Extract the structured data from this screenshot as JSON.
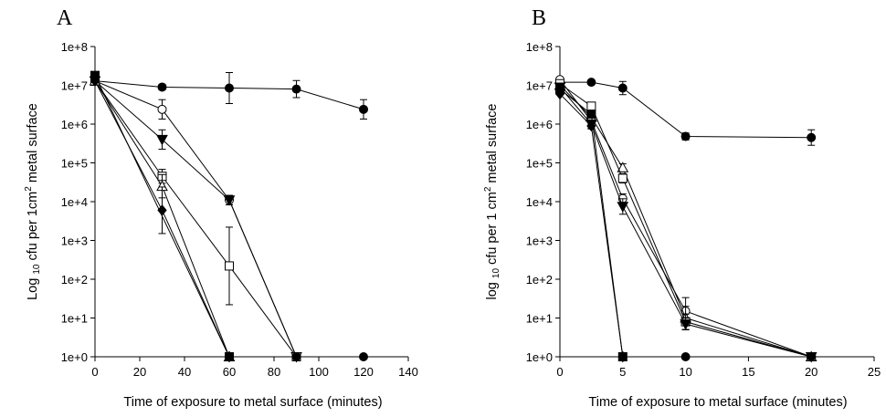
{
  "chart_data": [
    {
      "type": "scatter",
      "panel_label": "A",
      "xlabel": "Time of exposure to metal surface (minutes)",
      "ylabel": {
        "pre": "Log ",
        "sub": "10",
        "mid": " cfu per 1cm",
        "sup": "2",
        "post": " metal surface"
      },
      "xlim": [
        0,
        140
      ],
      "xticks": [
        "0",
        "20",
        "40",
        "60",
        "80",
        "100",
        "120",
        "140"
      ],
      "ylim_log10": [
        0,
        8
      ],
      "yticks": [
        "1e+0",
        "1e+1",
        "1e+2",
        "1e+3",
        "1e+4",
        "1e+5",
        "1e+6",
        "1e+7",
        "1e+8"
      ],
      "grid": false,
      "series": [
        {
          "marker": "circle-filled",
          "points": [
            {
              "x": 0,
              "y": 13000000
            },
            {
              "x": 30,
              "y": 9000000
            },
            {
              "x": 60,
              "y": 8500000
            },
            {
              "x": 90,
              "y": 8000000
            },
            {
              "x": 120,
              "y": 2400000
            }
          ],
          "error_log10": [
            0.05,
            0.07,
            0.4,
            0.22,
            0.25
          ]
        },
        {
          "marker": "circle-open",
          "points": [
            {
              "x": 0,
              "y": 13000000
            },
            {
              "x": 30,
              "y": 2400000
            },
            {
              "x": 60,
              "y": 11000
            },
            {
              "x": 90,
              "y": 1
            }
          ],
          "error_log10": [
            0.0,
            0.25,
            0.12,
            0.0
          ]
        },
        {
          "marker": "triangle-down-filled",
          "points": [
            {
              "x": 0,
              "y": 13000000
            },
            {
              "x": 30,
              "y": 400000
            },
            {
              "x": 60,
              "y": 11000
            },
            {
              "x": 90,
              "y": 1
            }
          ],
          "error_log10": [
            0.0,
            0.25,
            0.12,
            0.0
          ]
        },
        {
          "marker": "square-open",
          "points": [
            {
              "x": 0,
              "y": 13000000
            },
            {
              "x": 30,
              "y": 45000
            },
            {
              "x": 60,
              "y": 220
            },
            {
              "x": 90,
              "y": 1
            }
          ],
          "error_log10": [
            0.0,
            0.18,
            1.0,
            0.0
          ]
        },
        {
          "marker": "triangle-up-open",
          "points": [
            {
              "x": 0,
              "y": 13000000
            },
            {
              "x": 30,
              "y": 25000
            },
            {
              "x": 60,
              "y": 1
            }
          ],
          "error_log10": [
            0.0,
            0.3,
            0.0
          ]
        },
        {
          "marker": "diamond-filled",
          "points": [
            {
              "x": 0,
              "y": 13000000
            },
            {
              "x": 30,
              "y": 6000
            },
            {
              "x": 60,
              "y": 1
            }
          ],
          "error_log10": [
            0.0,
            0.6,
            0.0
          ]
        },
        {
          "marker": "square-filled",
          "points": [
            {
              "x": 0,
              "y": 18000000
            },
            {
              "x": 60,
              "y": 1
            }
          ],
          "error_log10": [
            0.0,
            0.0
          ]
        },
        {
          "marker": "circle-filled",
          "points": [
            {
              "x": 90,
              "y": 1
            },
            {
              "x": 120,
              "y": 1
            }
          ],
          "error_log10": [
            0.0,
            0.0
          ]
        }
      ]
    },
    {
      "type": "scatter",
      "panel_label": "B",
      "xlabel": "Time of exposure to metal surface (minutes)",
      "ylabel": {
        "pre": "log ",
        "sub": "10",
        "mid": " cfu per 1 cm",
        "sup": "2",
        "post": " metal surface"
      },
      "xlim": [
        0,
        25
      ],
      "xticks": [
        "0",
        "5",
        "10",
        "15",
        "20",
        "25"
      ],
      "ylim_log10": [
        0,
        8
      ],
      "yticks": [
        "1e+0",
        "1e+1",
        "1e+2",
        "1e+3",
        "1e+4",
        "1e+5",
        "1e+6",
        "1e+7",
        "1e+8"
      ],
      "grid": false,
      "series": [
        {
          "marker": "circle-filled",
          "points": [
            {
              "x": 0,
              "y": 12000000
            },
            {
              "x": 2.5,
              "y": 12000000
            },
            {
              "x": 5,
              "y": 8500000
            },
            {
              "x": 10,
              "y": 480000
            },
            {
              "x": 20,
              "y": 450000
            }
          ],
          "error_log10": [
            0.05,
            0.05,
            0.17,
            0.09,
            0.2
          ]
        },
        {
          "marker": "circle-open",
          "points": [
            {
              "x": 0,
              "y": 14000000
            },
            {
              "x": 2.5,
              "y": 1200000
            },
            {
              "x": 5,
              "y": 12000
            },
            {
              "x": 10,
              "y": 15
            },
            {
              "x": 20,
              "y": 1
            }
          ],
          "error_log10": [
            0.0,
            0.1,
            0.12,
            0.35,
            0.0
          ]
        },
        {
          "marker": "triangle-up-open",
          "points": [
            {
              "x": 0,
              "y": 10000000
            },
            {
              "x": 2.5,
              "y": 1500000
            },
            {
              "x": 5,
              "y": 75000
            },
            {
              "x": 10,
              "y": 10
            },
            {
              "x": 20,
              "y": 1
            }
          ],
          "error_log10": [
            0.0,
            0.1,
            0.1,
            0.3,
            0.0
          ]
        },
        {
          "marker": "square-open",
          "points": [
            {
              "x": 0,
              "y": 11000000
            },
            {
              "x": 2.5,
              "y": 2900000
            },
            {
              "x": 5,
              "y": 40000
            },
            {
              "x": 10,
              "y": 8
            },
            {
              "x": 20,
              "y": 1
            }
          ],
          "error_log10": [
            0.0,
            0.1,
            0.12,
            0.2,
            0.0
          ]
        },
        {
          "marker": "triangle-down-filled",
          "points": [
            {
              "x": 0,
              "y": 9000000
            },
            {
              "x": 2.5,
              "y": 1000000
            },
            {
              "x": 5,
              "y": 7500
            },
            {
              "x": 10,
              "y": 7
            },
            {
              "x": 20,
              "y": 1
            }
          ],
          "error_log10": [
            0.0,
            0.1,
            0.2,
            0.15,
            0.0
          ]
        },
        {
          "marker": "diamond-filled",
          "points": [
            {
              "x": 0,
              "y": 6000000
            },
            {
              "x": 2.5,
              "y": 900000
            },
            {
              "x": 5,
              "y": 1
            }
          ],
          "error_log10": [
            0.0,
            0.08,
            0.0
          ]
        },
        {
          "marker": "square-filled",
          "points": [
            {
              "x": 0,
              "y": 8000000
            },
            {
              "x": 2.5,
              "y": 1800000
            },
            {
              "x": 5,
              "y": 1
            }
          ],
          "error_log10": [
            0.0,
            0.08,
            0.0
          ]
        },
        {
          "marker": "circle-filled",
          "points": [
            {
              "x": 10,
              "y": 1
            },
            {
              "x": 20,
              "y": 1
            }
          ],
          "error_log10": [
            0.0,
            0.0
          ]
        }
      ]
    }
  ]
}
